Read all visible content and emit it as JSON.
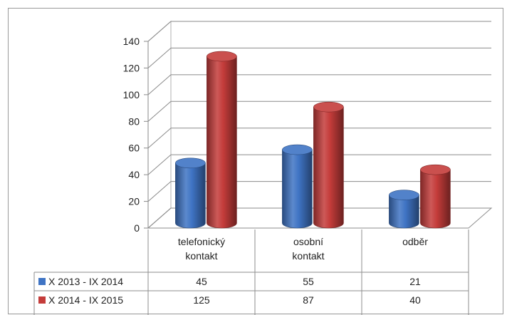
{
  "chart_data": {
    "type": "bar",
    "style": "3d-cylinder",
    "categories": [
      [
        "telefonický",
        "kontakt"
      ],
      [
        "osobní",
        "kontakt"
      ],
      [
        "odběr"
      ]
    ],
    "series": [
      {
        "name": "X 2013 - IX 2014",
        "values": [
          45,
          55,
          21
        ],
        "color": "#3f74c4"
      },
      {
        "name": "X 2014 - IX 2015",
        "values": [
          125,
          87,
          40
        ],
        "color": "#c43c3a"
      }
    ],
    "ylim": [
      0,
      140
    ],
    "yticks": [
      "0",
      "20",
      "40",
      "60",
      "80",
      "100",
      "120",
      "140"
    ],
    "grid": true,
    "legend": "data-table"
  }
}
